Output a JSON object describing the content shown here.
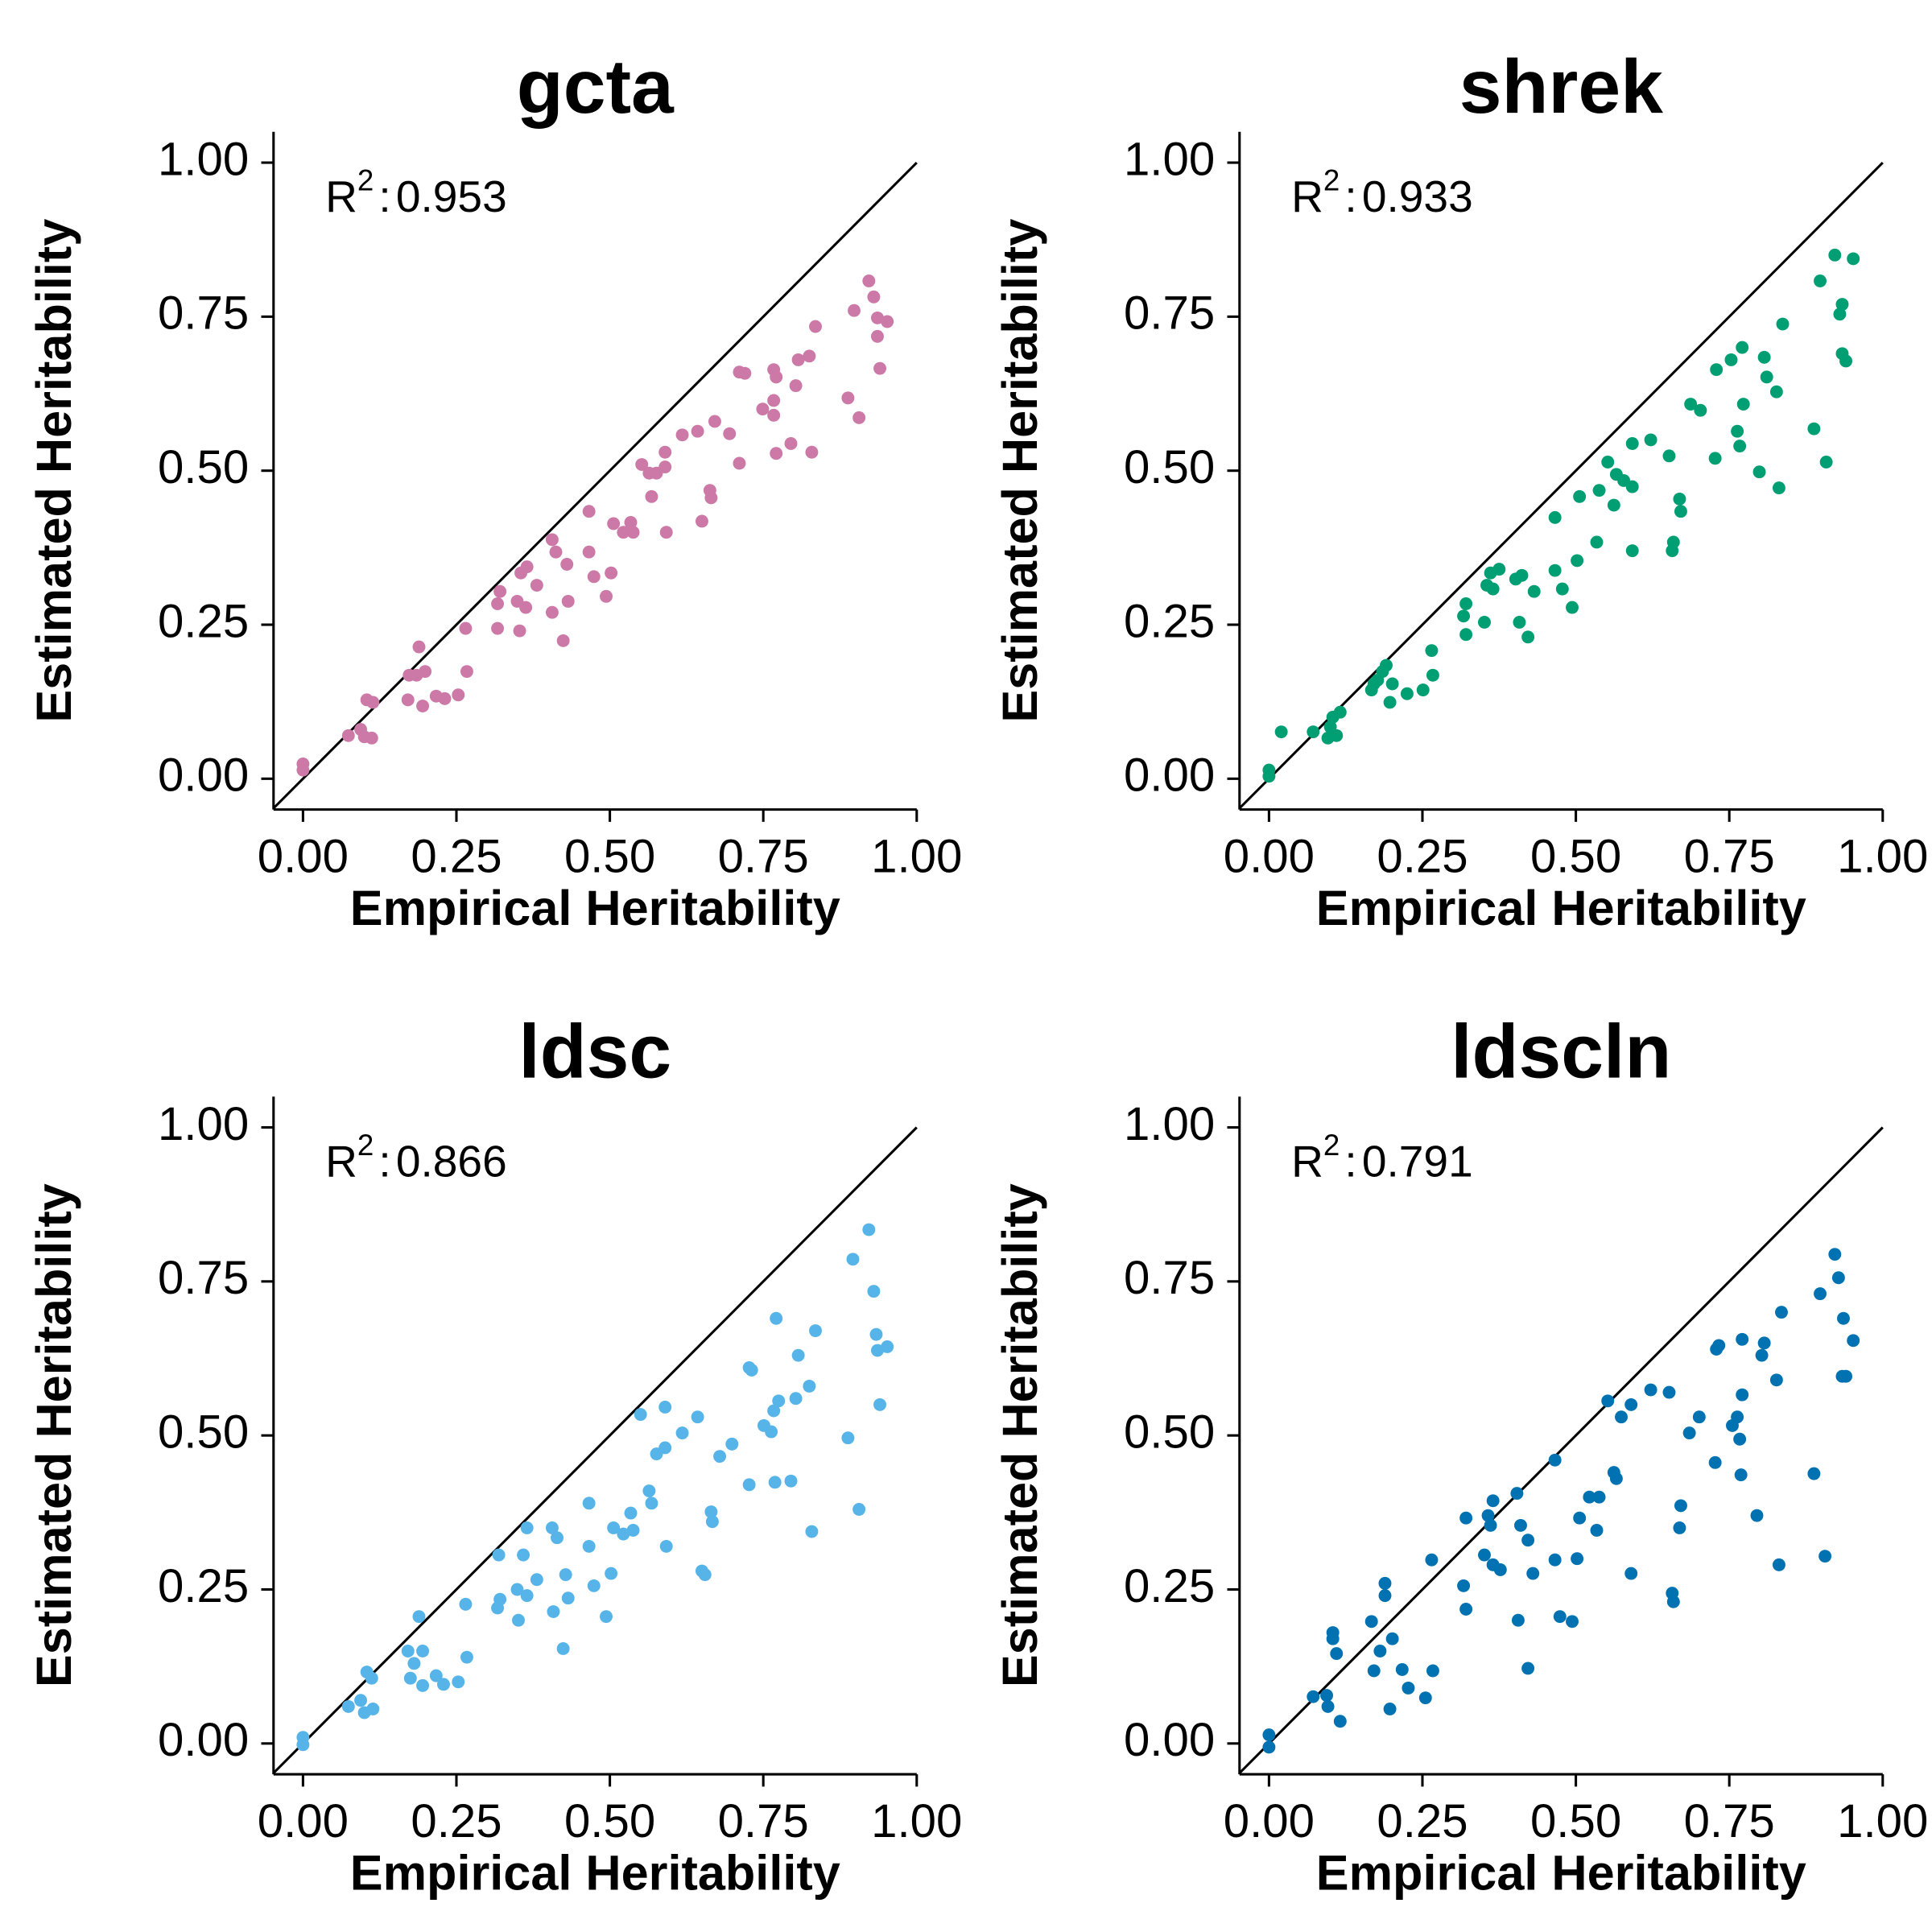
{
  "chart_data": [
    {
      "type": "scatter",
      "title": "gcta",
      "xlabel": "Empirical Heritability",
      "ylabel": "Estimated Heritability",
      "color": "#CC79A7",
      "annotation": {
        "text": "R",
        "superscript": "2",
        "separator": ":",
        "value": 0.953
      },
      "xlim": [
        -0.048,
        1.0
      ],
      "ylim": [
        -0.05,
        1.05
      ],
      "xticks": [
        {
          "value": 0,
          "label": "0.00"
        },
        {
          "value": 0.25,
          "label": "0.25"
        },
        {
          "value": 0.5,
          "label": "0.50"
        },
        {
          "value": 0.75,
          "label": "0.75"
        },
        {
          "value": 1,
          "label": "1.00"
        }
      ],
      "yticks": [
        {
          "value": 0,
          "label": "0.00"
        },
        {
          "value": 0.25,
          "label": "0.25"
        },
        {
          "value": 0.5,
          "label": "0.50"
        },
        {
          "value": 0.75,
          "label": "0.75"
        },
        {
          "value": 1,
          "label": "1.00"
        }
      ],
      "x": [
        0,
        0,
        0.074,
        0.094,
        0.104,
        0.114,
        0.1,
        0.112,
        0.171,
        0.173,
        0.189,
        0.185,
        0.199,
        0.195,
        0.217,
        0.231,
        0.253,
        0.267,
        0.265,
        0.317,
        0.321,
        0.317,
        0.349,
        0.355,
        0.365,
        0.363,
        0.353,
        0.381,
        0.406,
        0.412,
        0.406,
        0.424,
        0.43,
        0.432,
        0.466,
        0.466,
        0.474,
        0.494,
        0.502,
        0.506,
        0.522,
        0.534,
        0.538,
        0.552,
        0.564,
        0.568,
        0.576,
        0.59,
        0.59,
        0.592,
        0.618,
        0.643,
        0.65,
        0.663,
        0.665,
        0.671,
        0.695,
        0.711,
        0.711,
        0.72,
        0.749,
        0.767,
        0.767,
        0.771,
        0.771,
        0.767,
        0.795,
        0.803,
        0.807,
        0.825,
        0.829,
        0.835,
        0.888,
        0.898,
        0.906,
        0.922,
        0.93,
        0.936,
        0.936,
        0.94,
        0.952
      ],
      "values": [
        0.024,
        0.014,
        0.07,
        0.08,
        0.128,
        0.124,
        0.068,
        0.066,
        0.128,
        0.168,
        0.214,
        0.168,
        0.174,
        0.118,
        0.134,
        0.13,
        0.136,
        0.174,
        0.244,
        0.284,
        0.304,
        0.244,
        0.288,
        0.334,
        0.344,
        0.278,
        0.24,
        0.314,
        0.388,
        0.368,
        0.27,
        0.224,
        0.348,
        0.288,
        0.434,
        0.368,
        0.328,
        0.296,
        0.334,
        0.414,
        0.4,
        0.416,
        0.4,
        0.51,
        0.496,
        0.458,
        0.496,
        0.53,
        0.506,
        0.4,
        0.558,
        0.564,
        0.418,
        0.468,
        0.456,
        0.58,
        0.56,
        0.512,
        0.66,
        0.658,
        0.6,
        0.664,
        0.614,
        0.652,
        0.528,
        0.59,
        0.544,
        0.638,
        0.68,
        0.686,
        0.53,
        0.734,
        0.618,
        0.76,
        0.586,
        0.808,
        0.782,
        0.748,
        0.718,
        0.666,
        0.742
      ]
    },
    {
      "type": "scatter",
      "title": "shrek",
      "xlabel": "Empirical Heritability",
      "ylabel": "Estimated Heritability",
      "color": "#009E73",
      "annotation": {
        "text": "R",
        "superscript": "2",
        "separator": ":",
        "value": 0.933
      },
      "xlim": [
        -0.048,
        1.0
      ],
      "ylim": [
        -0.05,
        1.05
      ],
      "xticks": [
        {
          "value": 0,
          "label": "0.00"
        },
        {
          "value": 0.25,
          "label": "0.25"
        },
        {
          "value": 0.5,
          "label": "0.50"
        },
        {
          "value": 0.75,
          "label": "0.75"
        },
        {
          "value": 1,
          "label": "1.00"
        }
      ],
      "yticks": [
        {
          "value": 0,
          "label": "0.00"
        },
        {
          "value": 0.25,
          "label": "0.25"
        },
        {
          "value": 0.5,
          "label": "0.50"
        },
        {
          "value": 0.75,
          "label": "0.75"
        },
        {
          "value": 1,
          "label": "1.00"
        }
      ],
      "x": [
        0,
        0,
        0.02,
        0.072,
        0.096,
        0.1,
        0.104,
        0.116,
        0.11,
        0.167,
        0.177,
        0.185,
        0.191,
        0.171,
        0.197,
        0.201,
        0.225,
        0.251,
        0.265,
        0.267,
        0.317,
        0.321,
        0.321,
        0.351,
        0.355,
        0.361,
        0.365,
        0.375,
        0.402,
        0.412,
        0.408,
        0.422,
        0.432,
        0.466,
        0.466,
        0.478,
        0.494,
        0.502,
        0.506,
        0.538,
        0.534,
        0.552,
        0.562,
        0.566,
        0.578,
        0.592,
        0.592,
        0.592,
        0.622,
        0.652,
        0.657,
        0.659,
        0.669,
        0.671,
        0.687,
        0.703,
        0.727,
        0.729,
        0.753,
        0.763,
        0.767,
        0.773,
        0.771,
        0.799,
        0.807,
        0.811,
        0.827,
        0.831,
        0.837,
        0.888,
        0.898,
        0.908,
        0.922,
        0.93,
        0.934,
        0.934,
        0.94,
        0.952
      ],
      "values": [
        0.004,
        0.014,
        0.076,
        0.076,
        0.066,
        0.084,
        0.1,
        0.108,
        0.07,
        0.144,
        0.16,
        0.174,
        0.184,
        0.154,
        0.124,
        0.154,
        0.138,
        0.144,
        0.208,
        0.168,
        0.264,
        0.284,
        0.234,
        0.254,
        0.314,
        0.334,
        0.308,
        0.34,
        0.324,
        0.33,
        0.254,
        0.23,
        0.304,
        0.424,
        0.338,
        0.308,
        0.278,
        0.354,
        0.458,
        0.468,
        0.384,
        0.514,
        0.444,
        0.494,
        0.484,
        0.474,
        0.37,
        0.544,
        0.55,
        0.524,
        0.37,
        0.384,
        0.454,
        0.434,
        0.608,
        0.598,
        0.52,
        0.664,
        0.68,
        0.564,
        0.54,
        0.608,
        0.7,
        0.498,
        0.684,
        0.652,
        0.628,
        0.472,
        0.738,
        0.568,
        0.808,
        0.514,
        0.85,
        0.754,
        0.77,
        0.69,
        0.678,
        0.844
      ]
    },
    {
      "type": "scatter",
      "title": "ldsc",
      "xlabel": "Empirical Heritability",
      "ylabel": "Estimated Heritability",
      "color": "#56B4E9",
      "annotation": {
        "text": "R",
        "superscript": "2",
        "separator": ":",
        "value": 0.866
      },
      "xlim": [
        -0.048,
        1.0
      ],
      "ylim": [
        -0.05,
        1.05
      ],
      "xticks": [
        {
          "value": 0,
          "label": "0.00"
        },
        {
          "value": 0.25,
          "label": "0.25"
        },
        {
          "value": 0.5,
          "label": "0.50"
        },
        {
          "value": 0.75,
          "label": "0.75"
        },
        {
          "value": 1,
          "label": "1.00"
        }
      ],
      "yticks": [
        {
          "value": 0,
          "label": "0.00"
        },
        {
          "value": 0.25,
          "label": "0.25"
        },
        {
          "value": 0.5,
          "label": "0.50"
        },
        {
          "value": 0.75,
          "label": "0.75"
        },
        {
          "value": 1,
          "label": "1.00"
        }
      ],
      "x": [
        0,
        0,
        0.074,
        0.094,
        0.1,
        0.104,
        0.112,
        0.114,
        0.171,
        0.175,
        0.181,
        0.189,
        0.195,
        0.195,
        0.217,
        0.229,
        0.253,
        0.265,
        0.267,
        0.317,
        0.319,
        0.321,
        0.349,
        0.351,
        0.359,
        0.365,
        0.365,
        0.381,
        0.406,
        0.408,
        0.414,
        0.424,
        0.428,
        0.432,
        0.466,
        0.466,
        0.474,
        0.494,
        0.502,
        0.506,
        0.522,
        0.534,
        0.538,
        0.55,
        0.564,
        0.568,
        0.576,
        0.59,
        0.59,
        0.592,
        0.618,
        0.643,
        0.65,
        0.655,
        0.665,
        0.667,
        0.679,
        0.699,
        0.727,
        0.727,
        0.731,
        0.751,
        0.763,
        0.767,
        0.771,
        0.775,
        0.769,
        0.795,
        0.803,
        0.807,
        0.825,
        0.829,
        0.835,
        0.888,
        0.896,
        0.906,
        0.922,
        0.93,
        0.934,
        0.936,
        0.94,
        0.952
      ],
      "values": [
        0.01,
        -0.002,
        0.06,
        0.07,
        0.05,
        0.116,
        0.106,
        0.056,
        0.15,
        0.106,
        0.13,
        0.206,
        0.15,
        0.094,
        0.11,
        0.096,
        0.1,
        0.226,
        0.14,
        0.22,
        0.306,
        0.234,
        0.25,
        0.2,
        0.306,
        0.35,
        0.24,
        0.266,
        0.35,
        0.214,
        0.334,
        0.154,
        0.274,
        0.236,
        0.39,
        0.32,
        0.256,
        0.206,
        0.276,
        0.35,
        0.34,
        0.374,
        0.346,
        0.534,
        0.41,
        0.39,
        0.47,
        0.546,
        0.48,
        0.32,
        0.504,
        0.53,
        0.28,
        0.274,
        0.376,
        0.36,
        0.466,
        0.486,
        0.42,
        0.61,
        0.606,
        0.516,
        0.506,
        0.54,
        0.69,
        0.556,
        0.424,
        0.426,
        0.56,
        0.63,
        0.58,
        0.344,
        0.67,
        0.496,
        0.786,
        0.38,
        0.834,
        0.734,
        0.664,
        0.638,
        0.55,
        0.644
      ]
    },
    {
      "type": "scatter",
      "title": "ldscln",
      "xlabel": "Empirical Heritability",
      "ylabel": "Estimated Heritability",
      "color": "#0072B2",
      "annotation": {
        "text": "R",
        "superscript": "2",
        "separator": ":",
        "value": 0.791
      },
      "xlim": [
        -0.048,
        1.0
      ],
      "ylim": [
        -0.05,
        1.05
      ],
      "xticks": [
        {
          "value": 0,
          "label": "0.00"
        },
        {
          "value": 0.25,
          "label": "0.25"
        },
        {
          "value": 0.5,
          "label": "0.50"
        },
        {
          "value": 0.75,
          "label": "0.75"
        },
        {
          "value": 1,
          "label": "1.00"
        }
      ],
      "yticks": [
        {
          "value": 0,
          "label": "0.00"
        },
        {
          "value": 0.25,
          "label": "0.25"
        },
        {
          "value": 0.5,
          "label": "0.50"
        },
        {
          "value": 0.75,
          "label": "0.75"
        },
        {
          "value": 1,
          "label": "1.00"
        }
      ],
      "x": [
        0,
        0,
        0.072,
        0.094,
        0.096,
        0.104,
        0.104,
        0.11,
        0.116,
        0.167,
        0.171,
        0.181,
        0.189,
        0.189,
        0.197,
        0.201,
        0.217,
        0.227,
        0.255,
        0.265,
        0.267,
        0.317,
        0.321,
        0.321,
        0.351,
        0.357,
        0.361,
        0.365,
        0.365,
        0.377,
        0.404,
        0.41,
        0.406,
        0.422,
        0.422,
        0.43,
        0.466,
        0.466,
        0.474,
        0.494,
        0.502,
        0.506,
        0.522,
        0.534,
        0.538,
        0.552,
        0.562,
        0.566,
        0.574,
        0.59,
        0.59,
        0.622,
        0.652,
        0.657,
        0.659,
        0.669,
        0.671,
        0.685,
        0.701,
        0.727,
        0.729,
        0.733,
        0.755,
        0.763,
        0.767,
        0.771,
        0.771,
        0.769,
        0.795,
        0.803,
        0.807,
        0.827,
        0.831,
        0.835,
        0.888,
        0.898,
        0.906,
        0.922,
        0.928,
        0.936,
        0.934,
        0.94,
        0.952
      ],
      "values": [
        0.014,
        -0.006,
        0.076,
        0.078,
        0.06,
        0.18,
        0.17,
        0.146,
        0.036,
        0.198,
        0.118,
        0.15,
        0.26,
        0.24,
        0.056,
        0.17,
        0.12,
        0.09,
        0.074,
        0.298,
        0.118,
        0.256,
        0.366,
        0.218,
        0.306,
        0.37,
        0.354,
        0.29,
        0.394,
        0.282,
        0.406,
        0.354,
        0.2,
        0.122,
        0.33,
        0.276,
        0.46,
        0.298,
        0.206,
        0.198,
        0.3,
        0.366,
        0.4,
        0.346,
        0.4,
        0.556,
        0.44,
        0.43,
        0.53,
        0.55,
        0.276,
        0.574,
        0.57,
        0.244,
        0.23,
        0.35,
        0.386,
        0.504,
        0.53,
        0.456,
        0.64,
        0.646,
        0.516,
        0.53,
        0.494,
        0.656,
        0.566,
        0.436,
        0.37,
        0.63,
        0.65,
        0.59,
        0.29,
        0.7,
        0.438,
        0.73,
        0.304,
        0.794,
        0.756,
        0.69,
        0.596,
        0.596,
        0.654
      ]
    }
  ]
}
